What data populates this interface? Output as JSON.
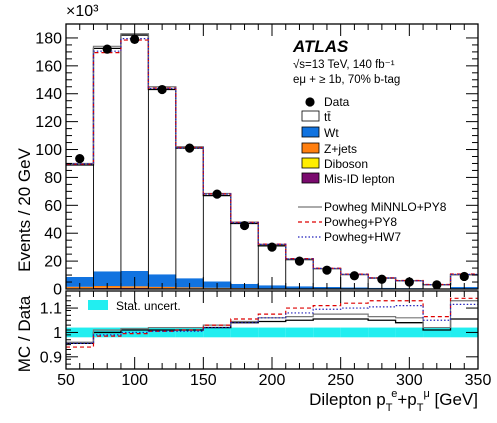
{
  "chart_data": {
    "type": "histogram",
    "atlas_label": "ATLAS",
    "energy_label": "√s=13 TeV, 140 fb⁻¹",
    "selection_label": "eμ + ≥ 1b, 70% b-tag",
    "y_multiplier": "×10³",
    "ylabel": "Events / 20 GeV",
    "ratio_ylabel": "MC / Data",
    "xlabel": "Dilepton pᵀᵉ+pᵀᵘ [GeV]",
    "xlim": [
      50,
      350
    ],
    "ylim": [
      0,
      190
    ],
    "ratio_ylim": [
      0.85,
      1.17
    ],
    "x_ticks": [
      "50",
      "100",
      "150",
      "200",
      "250",
      "300",
      "350"
    ],
    "y_ticks": [
      "0",
      "20",
      "40",
      "60",
      "80",
      "100",
      "120",
      "140",
      "160",
      "180"
    ],
    "ratio_ticks": [
      "0.9",
      "1",
      "1.1"
    ],
    "bin_edges": [
      50,
      70,
      90,
      110,
      130,
      150,
      170,
      190,
      210,
      230,
      250,
      270,
      290,
      310,
      330,
      350
    ],
    "data": {
      "name": "Data",
      "x": [
        60,
        80,
        100,
        120,
        140,
        160,
        180,
        200,
        220,
        240,
        260,
        280,
        300,
        320,
        340
      ],
      "values": [
        93.5,
        172,
        179,
        143,
        101,
        68,
        45.5,
        30,
        20,
        13.5,
        9.5,
        7,
        5,
        3,
        9
      ]
    },
    "stack": [
      {
        "name": "Mis-ID lepton",
        "color": "#7a0a6e",
        "values": [
          0.5,
          0.7,
          0.7,
          0.6,
          0.5,
          0.4,
          0.3,
          0.2,
          0.15,
          0.1,
          0.1,
          0.08,
          0.06,
          0.05,
          0.1
        ]
      },
      {
        "name": "Diboson",
        "color": "#ffee00",
        "values": [
          0.1,
          0.15,
          0.15,
          0.12,
          0.1,
          0.08,
          0.06,
          0.05,
          0.04,
          0.03,
          0.02,
          0.02,
          0.02,
          0.01,
          0.03
        ]
      },
      {
        "name": "Z+jets",
        "color": "#ff7f10",
        "values": [
          1.0,
          1.3,
          1.1,
          0.8,
          0.6,
          0.4,
          0.3,
          0.2,
          0.15,
          0.1,
          0.08,
          0.06,
          0.05,
          0.03,
          0.08
        ]
      },
      {
        "name": "Wt",
        "color": "#1173e0",
        "values": [
          7.0,
          10.5,
          11.0,
          9.0,
          6.5,
          4.5,
          3.0,
          2.2,
          1.6,
          1.2,
          0.9,
          0.7,
          0.5,
          0.35,
          1.2
        ]
      },
      {
        "name": "tt̄",
        "color": "#ffffff",
        "values": [
          80.3,
          159.9,
          169.1,
          132.5,
          93.3,
          61.6,
          43.3,
          28.3,
          19.1,
          13.2,
          9.3,
          7.0,
          5.2,
          2.6,
          8.8
        ]
      }
    ],
    "mc_lines": [
      {
        "name": "Powheg MiNNLO+PY8",
        "color": "#777777",
        "dash": "",
        "values": [
          90,
          174,
          183,
          145,
          102,
          68.5,
          48,
          32,
          21.5,
          14.6,
          10.3,
          7.7,
          5.8,
          3.0,
          10.2
        ]
      },
      {
        "name": "Powheg+PY8",
        "color": "#dd0000",
        "dash": "4,3",
        "values": [
          89.5,
          169.5,
          178.5,
          144,
          101.5,
          68.2,
          47.8,
          32.2,
          21.8,
          14.9,
          10.7,
          8.0,
          6.1,
          3.2,
          10.8
        ]
      },
      {
        "name": "Powheg+HW7",
        "color": "#2222bb",
        "dash": "1.5,2",
        "values": [
          89.7,
          170.5,
          179.5,
          143.8,
          101.2,
          68.0,
          47.5,
          32.0,
          21.5,
          14.8,
          10.5,
          7.9,
          5.9,
          3.1,
          10.5
        ]
      }
    ],
    "ratio": {
      "stat_uncert_label": "Stat. uncert.",
      "stat_uncert_color": "#22eef0",
      "stat_uncert": [
        0.02,
        0.02,
        0.02,
        0.02,
        0.02,
        0.02,
        0.02,
        0.02,
        0.02,
        0.02,
        0.02,
        0.02,
        0.02,
        0.02,
        0.02
      ],
      "nominal": [
        0.955,
        1.0,
        1.01,
        1.01,
        1.01,
        1.02,
        1.04,
        1.045,
        1.05,
        1.055,
        1.055,
        1.05,
        1.04,
        1.01,
        1.055
      ],
      "series": [
        {
          "name": "Powheg MiNNLO+PY8",
          "values": [
            0.96,
            1.01,
            1.015,
            1.02,
            1.02,
            1.03,
            1.045,
            1.06,
            1.065,
            1.075,
            1.075,
            1.065,
            1.06,
            1.02,
            1.13
          ]
        },
        {
          "name": "Powheg+PY8",
          "values": [
            0.94,
            0.985,
            0.995,
            1.005,
            1.01,
            1.03,
            1.055,
            1.075,
            1.1,
            1.11,
            1.12,
            1.13,
            1.13,
            1.065,
            1.14
          ]
        },
        {
          "name": "Powheg+HW7",
          "values": [
            0.955,
            0.99,
            1.0,
            1.005,
            1.005,
            1.02,
            1.04,
            1.06,
            1.08,
            1.095,
            1.1,
            1.105,
            1.11,
            1.05,
            1.115
          ]
        }
      ]
    },
    "legend": {
      "data": "Data",
      "ttbar": "tt̄",
      "wt": "Wt",
      "zjets": "Z+jets",
      "diboson": "Diboson",
      "misid": "Mis-ID lepton",
      "minnlo": "Powheg MiNNLO+PY8",
      "py8": "Powheg+PY8",
      "hw7": "Powheg+HW7"
    }
  }
}
